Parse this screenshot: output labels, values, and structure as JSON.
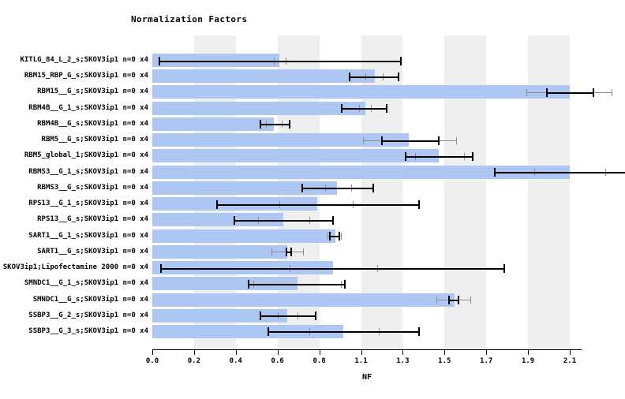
{
  "title": "Normalization Factors",
  "xlabel": "NF",
  "colors": {
    "bar": "#aec7f2",
    "background_band": "#efefef",
    "whisker_black": "#000000",
    "whisker_gray": "#8c8c8c"
  },
  "chart_data": {
    "type": "bar",
    "orientation": "horizontal",
    "title": "Normalization Factors",
    "xlabel": "NF",
    "ylabel": "",
    "grid": "alternating vertical gray bands between odd/even ticks",
    "legend": "none",
    "axis_tick_labels": [
      "0.0",
      "0.2",
      "0.4",
      "0.6",
      "0.8",
      "1.1",
      "1.3",
      "1.5",
      "1.7",
      "1.9",
      "2.1"
    ],
    "axis_tick_step": 0.21,
    "xlim": [
      0,
      2.1
    ],
    "categories": [
      "KITLG_84_L_2_s;SKOV3ip1 n=0 x4",
      "RBM15_RBP_G_s;SKOV3ip1 n=0 x4",
      "RBM15__G_s;SKOV3ip1 n=0 x4",
      "RBM4B__G_1_s;SKOV3ip1 n=0 x4",
      "RBM4B__G_s;SKOV3ip1 n=0 x4",
      "RBM5__G_s;SKOV3ip1 n=0 x4",
      "RBM5_global_1;SKOV3ip1 n=0 x4",
      "RBMS3__G_1_s;SKOV3ip1 n=0 x4",
      "RBMS3__G_s;SKOV3ip1 n=0 x4",
      "RPS13__G_1_s;SKOV3ip1 n=0 x4",
      "RPS13__G_s;SKOV3ip1 n=0 x4",
      "SART1__G_1_s;SKOV3ip1 n=0 x4",
      "SART1__G_s;SKOV3ip1 n=0 x4",
      "SKOV3ip1;Lipofectamine 2000 n=0 x4",
      "SMNDC1__G_1_s;SKOV3ip1 n=0 x4",
      "SMNDC1__G_s;SKOV3ip1 n=0 x4",
      "SSBP3__G_2_s;SKOV3ip1 n=0 x4",
      "SSBP3__G_3_s;SKOV3ip1 n=0 x4"
    ],
    "series": [
      {
        "name": "NF (bar length, clipped at 2.1)",
        "values": [
          0.64,
          1.12,
          2.1,
          1.07,
          0.61,
          1.29,
          1.44,
          2.1,
          0.93,
          0.83,
          0.66,
          0.92,
          0.68,
          0.91,
          0.73,
          1.52,
          0.68,
          0.96
        ]
      },
      {
        "name": "error_bar_black_lo_hi",
        "ranges": [
          [
            0.03,
            1.25
          ],
          [
            0.99,
            1.24
          ],
          [
            1.98,
            2.22
          ],
          [
            0.95,
            1.18
          ],
          [
            0.54,
            0.69
          ],
          [
            1.15,
            1.44
          ],
          [
            1.27,
            1.61
          ],
          [
            1.72,
            2.47
          ],
          [
            0.75,
            1.11
          ],
          [
            0.32,
            1.34
          ],
          [
            0.41,
            0.91
          ],
          [
            0.89,
            0.94
          ],
          [
            0.67,
            0.7
          ],
          [
            0.04,
            1.77
          ],
          [
            0.48,
            0.97
          ],
          [
            1.49,
            1.54
          ],
          [
            0.54,
            0.82
          ],
          [
            0.58,
            1.34
          ]
        ]
      },
      {
        "name": "error_bar_gray_lo_hi",
        "ranges": [
          [
            0.61,
            0.67
          ],
          [
            1.07,
            1.16
          ],
          [
            1.88,
            2.31
          ],
          [
            1.04,
            1.1
          ],
          [
            0.57,
            0.65
          ],
          [
            1.06,
            1.53
          ],
          [
            1.32,
            1.57
          ],
          [
            1.92,
            2.28
          ],
          [
            0.87,
            1.0
          ],
          [
            0.64,
            1.01
          ],
          [
            0.53,
            0.79
          ],
          [
            0.88,
            0.95
          ],
          [
            0.6,
            0.76
          ],
          [
            0.69,
            1.13
          ],
          [
            0.51,
            0.95
          ],
          [
            1.43,
            1.6
          ],
          [
            0.63,
            0.73
          ],
          [
            0.79,
            1.14
          ]
        ]
      }
    ]
  }
}
